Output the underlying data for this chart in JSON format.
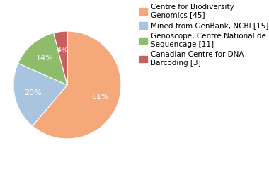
{
  "labels": [
    "Centre for Biodiversity\nGenomics [45]",
    "Mined from GenBank, NCBI [15]",
    "Genoscope, Centre National de\nSequencage [11]",
    "Canadian Centre for DNA\nBarcoding [3]"
  ],
  "values": [
    60,
    20,
    14,
    4
  ],
  "colors": [
    "#F5A87A",
    "#A8C4DF",
    "#8FBC6A",
    "#C85F5F"
  ],
  "startangle": 90,
  "background_color": "#ffffff",
  "text_color": "#ffffff",
  "pct_fontsize": 8,
  "legend_fontsize": 7.5
}
